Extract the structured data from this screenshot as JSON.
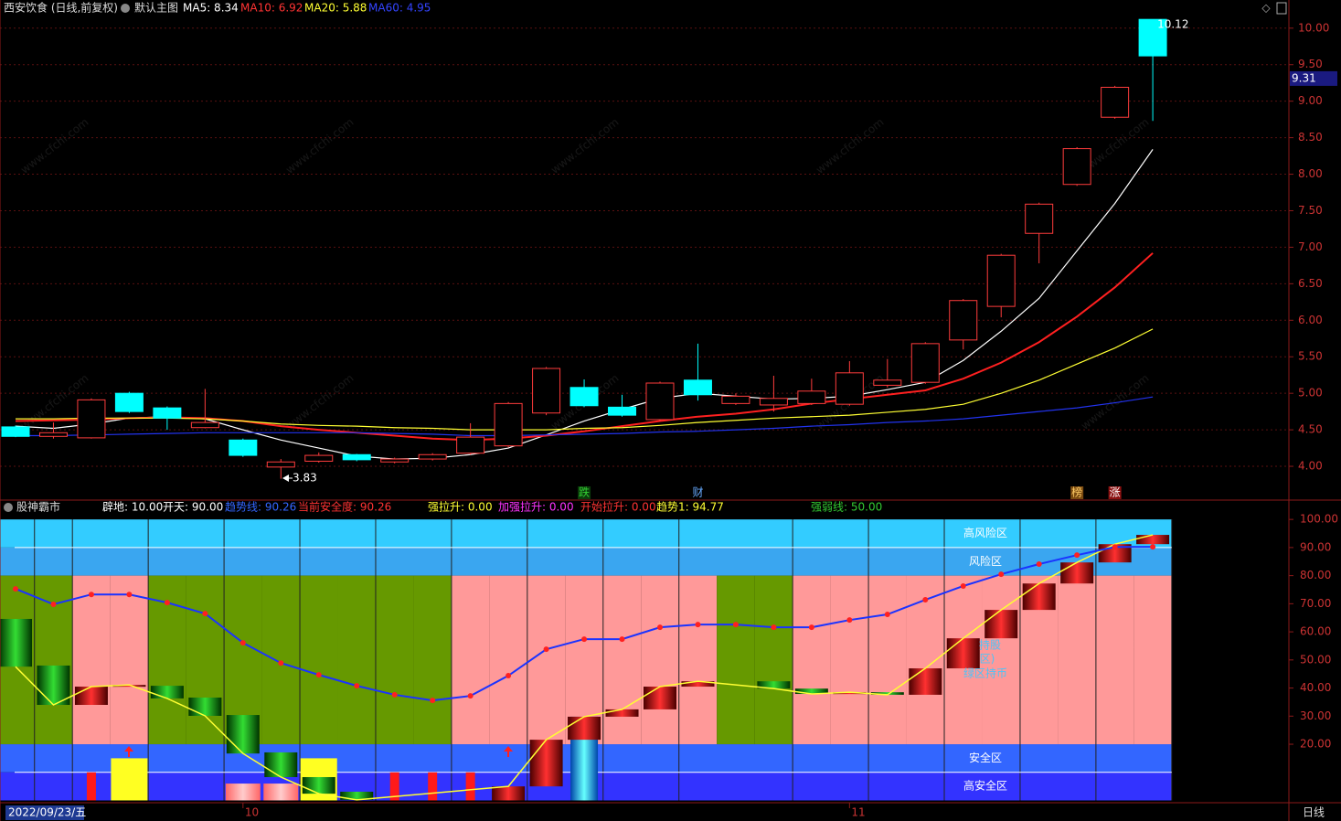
{
  "header": {
    "title": "西安饮食 (日线,前复权)",
    "template": "默认主图",
    "ma_labels": [
      {
        "text": "MA5: 8.34",
        "color": "#ffffff"
      },
      {
        "text": "MA10: 6.92",
        "color": "#ff3333"
      },
      {
        "text": "MA20: 5.88",
        "color": "#ffff33"
      },
      {
        "text": "MA60: 4.95",
        "color": "#3344ff"
      }
    ]
  },
  "chart_data": [
    {
      "type": "candlestick",
      "categories": [
        null,
        null,
        null,
        null,
        null,
        null,
        "10",
        null,
        null,
        null,
        null,
        null,
        null,
        null,
        null,
        null,
        null,
        null,
        null,
        null,
        null,
        null,
        "11",
        null,
        null,
        null,
        null,
        null,
        null,
        null,
        null
      ],
      "open": [
        4.54,
        4.41,
        4.39,
        5.0,
        4.8,
        4.53,
        4.36,
        3.99,
        4.07,
        4.16,
        4.06,
        4.1,
        4.18,
        4.28,
        4.73,
        5.08,
        4.81,
        4.64,
        5.18,
        4.86,
        4.84,
        4.86,
        4.85,
        5.11,
        5.15,
        5.73,
        6.19,
        7.19,
        7.86,
        8.78,
        10.12
      ],
      "high": [
        4.56,
        4.6,
        4.93,
        5.02,
        4.82,
        5.06,
        4.38,
        4.1,
        4.19,
        4.17,
        4.12,
        4.18,
        4.59,
        4.88,
        5.36,
        5.19,
        4.98,
        5.16,
        5.68,
        5.0,
        5.24,
        5.2,
        5.44,
        5.47,
        5.7,
        6.29,
        6.91,
        7.61,
        8.37,
        9.21,
        10.12
      ],
      "low": [
        4.4,
        4.38,
        4.38,
        4.73,
        4.5,
        4.52,
        4.13,
        3.83,
        4.05,
        4.07,
        4.04,
        4.08,
        4.16,
        4.26,
        4.7,
        4.81,
        4.68,
        4.62,
        4.9,
        4.84,
        4.75,
        4.84,
        4.83,
        5.08,
        5.13,
        5.6,
        6.04,
        6.78,
        7.84,
        8.76,
        8.73
      ],
      "close": [
        4.41,
        4.46,
        4.91,
        4.75,
        4.66,
        4.6,
        4.15,
        4.06,
        4.15,
        4.09,
        4.1,
        4.16,
        4.4,
        4.86,
        5.34,
        4.83,
        4.7,
        5.14,
        4.98,
        4.96,
        4.93,
        5.03,
        5.28,
        5.18,
        5.68,
        6.27,
        6.89,
        7.59,
        8.35,
        9.19,
        9.62
      ],
      "up_color": "#ff3c3c",
      "down_color": "#00ffff",
      "series": [
        {
          "name": "MA5",
          "color": "#ffffff",
          "values": [
            4.55,
            4.52,
            4.58,
            4.66,
            4.68,
            4.65,
            4.5,
            4.36,
            4.25,
            4.14,
            4.1,
            4.11,
            4.16,
            4.25,
            4.43,
            4.62,
            4.78,
            4.93,
            5.0,
            4.96,
            4.92,
            4.93,
            4.96,
            5.05,
            5.15,
            5.45,
            5.85,
            6.3,
            6.95,
            7.6,
            8.34
          ]
        },
        {
          "name": "MA10",
          "color": "#ff2020",
          "values": [
            4.62,
            4.63,
            4.64,
            4.66,
            4.67,
            4.66,
            4.62,
            4.55,
            4.5,
            4.46,
            4.42,
            4.38,
            4.36,
            4.38,
            4.42,
            4.48,
            4.55,
            4.62,
            4.68,
            4.72,
            4.78,
            4.86,
            4.92,
            4.98,
            5.04,
            5.2,
            5.42,
            5.7,
            6.05,
            6.45,
            6.92
          ]
        },
        {
          "name": "MA20",
          "color": "#ffff33",
          "values": [
            4.65,
            4.65,
            4.66,
            4.66,
            4.66,
            4.65,
            4.62,
            4.58,
            4.56,
            4.55,
            4.53,
            4.52,
            4.5,
            4.5,
            4.5,
            4.52,
            4.53,
            4.56,
            4.6,
            4.63,
            4.66,
            4.68,
            4.7,
            4.74,
            4.78,
            4.85,
            5.0,
            5.18,
            5.4,
            5.62,
            5.88
          ]
        },
        {
          "name": "MA60",
          "color": "#2233ee",
          "values": [
            4.42,
            4.42,
            4.43,
            4.44,
            4.45,
            4.46,
            4.46,
            4.46,
            4.46,
            4.46,
            4.45,
            4.44,
            4.42,
            4.42,
            4.43,
            4.44,
            4.45,
            4.47,
            4.48,
            4.5,
            4.52,
            4.55,
            4.57,
            4.6,
            4.62,
            4.65,
            4.7,
            4.75,
            4.8,
            4.87,
            4.95
          ]
        }
      ],
      "events": [
        null,
        null,
        null,
        null,
        null,
        null,
        null,
        null,
        null,
        null,
        null,
        null,
        null,
        null,
        null,
        {
          "text": "跌",
          "color": "#33cc33",
          "bg": "#0b3d0b"
        },
        null,
        null,
        {
          "text": "财",
          "color": "#66aaff",
          "bg": "#000000"
        },
        null,
        null,
        null,
        null,
        null,
        null,
        null,
        null,
        null,
        {
          "text": "榜",
          "color": "#ffcc66",
          "bg": "#7a4a10"
        },
        {
          "text": "涨",
          "color": "#ffffff",
          "bg": "#8b1010"
        },
        null
      ],
      "last_price": 9.31,
      "ylim": [
        3.55,
        10.16
      ],
      "yticks": [
        {
          "value": 4,
          "label": "4.00"
        },
        {
          "value": 4.5,
          "label": "4.50"
        },
        {
          "value": 5,
          "label": "5.00"
        },
        {
          "value": 5.5,
          "label": "5.50"
        },
        {
          "value": 6,
          "label": "6.00"
        },
        {
          "value": 6.5,
          "label": "6.50"
        },
        {
          "value": 7,
          "label": "7.00"
        },
        {
          "value": 7.5,
          "label": "7.50"
        },
        {
          "value": 8,
          "label": "8.00"
        },
        {
          "value": 8.5,
          "label": "8.50"
        },
        {
          "value": 9,
          "label": "9.00"
        },
        {
          "value": 9.5,
          "label": "9.50"
        },
        {
          "value": 10,
          "label": "10.00"
        }
      ],
      "grid": true
    },
    {
      "type": "indicator",
      "title": "股神霸市",
      "labels": [
        {
          "text": "辟地: 10.00",
          "color": "#ffffff"
        },
        {
          "text": "开天: 90.00",
          "color": "#ffffff"
        },
        {
          "text": "趋势线: 90.26",
          "color": "#3366ff"
        },
        {
          "text": "当前安全度: 90.26",
          "color": "#ff3333"
        },
        {
          "text": "强拉升: 0.00",
          "color": "#ffff33"
        },
        {
          "text": "加强拉升: 0.00",
          "color": "#ff33ff"
        },
        {
          "text": "开始拉升: 0.00",
          "color": "#ff3333"
        },
        {
          "text": "趋势1: 94.77",
          "color": "#ffff33"
        },
        {
          "text": "强弱线: 50.00",
          "color": "#33cc33"
        }
      ],
      "zones": [
        {
          "name": "高风险区",
          "from": 90,
          "to": 100,
          "color": "#33ccff"
        },
        {
          "name": "风险区",
          "from": 80,
          "to": 90,
          "color": "#3aa6f0"
        },
        {
          "name": "安全区",
          "from": 10,
          "to": 20,
          "color": "#3366ff"
        },
        {
          "name": "高安全区",
          "from": 0,
          "to": 10,
          "color": "#3333ff"
        }
      ],
      "middle_zone": [
        20,
        80
      ],
      "zone_colors": [
        "#669900",
        "#669900",
        "#ff9999",
        "#ff9999",
        "#669900",
        "#669900",
        "#669900",
        "#669900",
        "#669900",
        "#669900",
        "#669900",
        "#669900",
        "#ff9999",
        "#ff9999",
        "#ff9999",
        "#ff9999",
        "#ff9999",
        "#ff9999",
        "#ff9999",
        "#669900",
        "#669900",
        "#ff9999",
        "#ff9999",
        "#ff9999",
        "#ff9999",
        "#ff9999",
        "#ff9999",
        "#ff9999",
        "#ff9999",
        "#ff9999",
        "#ff9999"
      ],
      "levels": [
        10,
        90
      ],
      "trend": {
        "name": "趋势线",
        "color": "#1a33ff",
        "dot_color": "#ff2020",
        "values": [
          75.3,
          69.8,
          73.3,
          73.3,
          70.4,
          66.5,
          56.1,
          48.9,
          44.7,
          40.8,
          37.6,
          35.6,
          37.2,
          44.4,
          53.8,
          57.4,
          57.4,
          61.6,
          62.6,
          62.6,
          61.6,
          61.6,
          64.2,
          66.2,
          71.4,
          76.3,
          80.5,
          84.1,
          87.3,
          90.2,
          90.26
        ]
      },
      "blocks_open": [
        64.6,
        48.0,
        34.0,
        40.5,
        40.8,
        36.6,
        30.4,
        17.1,
        8.3,
        3.1,
        null,
        null,
        null,
        0,
        5.0,
        21.6,
        29.8,
        32.4,
        40.5,
        null,
        42.4,
        39.8,
        37.9,
        38.5,
        37.6,
        47.0,
        57.7,
        67.8,
        77.2,
        84.7,
        91.2
      ],
      "blocks_close": [
        47.6,
        34.0,
        40.5,
        41.1,
        36.3,
        30.1,
        16.7,
        8.3,
        2.4,
        0.2,
        null,
        null,
        null,
        5.0,
        21.6,
        29.8,
        32.4,
        40.5,
        42.4,
        null,
        39.8,
        37.9,
        38.5,
        37.6,
        47.0,
        57.7,
        67.8,
        77.2,
        84.7,
        91.2,
        94.5
      ],
      "line_color": "#ffff33",
      "red_bars": [
        null,
        null,
        10,
        null,
        null,
        null,
        null,
        null,
        null,
        null,
        10,
        10,
        10,
        null,
        null,
        null,
        null,
        null,
        null,
        null,
        null,
        null,
        null,
        null,
        null,
        null,
        null,
        null,
        null,
        null,
        null
      ],
      "yellow_bars": [
        null,
        null,
        null,
        15,
        null,
        null,
        null,
        null,
        15,
        null,
        null,
        null,
        null,
        null,
        null,
        null,
        null,
        null,
        null,
        null,
        null,
        null,
        null,
        null,
        null,
        null,
        null,
        null,
        null,
        null,
        null
      ],
      "pink_bars": [
        null,
        null,
        null,
        null,
        null,
        null,
        6,
        6,
        null,
        null,
        null,
        null,
        null,
        null,
        null,
        null,
        null,
        null,
        null,
        null,
        null,
        null,
        null,
        null,
        null,
        null,
        null,
        null,
        null,
        null,
        null
      ],
      "cyan_bars": [
        null,
        null,
        null,
        null,
        null,
        null,
        null,
        null,
        null,
        null,
        null,
        null,
        null,
        null,
        null,
        29.8,
        null,
        null,
        null,
        null,
        null,
        null,
        null,
        null,
        null,
        null,
        null,
        null,
        null,
        null,
        null
      ],
      "overlay_texts": [
        "持股",
        "区)",
        "绿区持币"
      ],
      "ylim": [
        0,
        102
      ],
      "yticks": [
        {
          "value": 20,
          "label": "20.00"
        },
        {
          "value": 30,
          "label": "30.00"
        },
        {
          "value": 40,
          "label": "40.00"
        },
        {
          "value": 50,
          "label": "50.00"
        },
        {
          "value": 60,
          "label": "60.00"
        },
        {
          "value": 70,
          "label": "70.00"
        },
        {
          "value": 80,
          "label": "80.00"
        },
        {
          "value": 90,
          "label": "90.00"
        },
        {
          "value": 100,
          "label": "100.00"
        }
      ]
    }
  ],
  "footer": {
    "date": "2022/09/23/五",
    "period": "日线"
  },
  "watermark": "www.cfchi.com"
}
